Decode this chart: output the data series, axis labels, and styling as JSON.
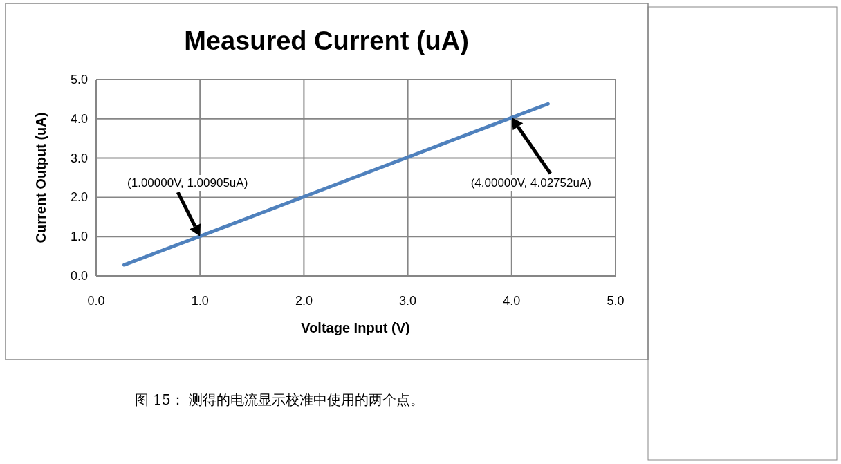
{
  "chart_data": {
    "type": "line",
    "title": "Measured Current (uA)",
    "xlabel": "Voltage Input (V)",
    "ylabel": "Current Output (uA)",
    "x": [
      0.27,
      1.0,
      4.0,
      4.35
    ],
    "series": [
      {
        "color": "#4f81bd",
        "values": [
          0.28,
          1.01,
          4.03,
          4.38
        ]
      }
    ],
    "xlim": [
      0,
      5
    ],
    "ylim": [
      0,
      5
    ],
    "xticks": [
      {
        "value": 0,
        "label": "0.0"
      },
      {
        "value": 1,
        "label": "1.0"
      },
      {
        "value": 2,
        "label": "2.0"
      },
      {
        "value": 3,
        "label": "3.0"
      },
      {
        "value": 4,
        "label": "4.0"
      },
      {
        "value": 5,
        "label": "5.0"
      }
    ],
    "yticks": [
      {
        "value": 0,
        "label": "0.0"
      },
      {
        "value": 1,
        "label": "1.0"
      },
      {
        "value": 2,
        "label": "2.0"
      },
      {
        "value": 3,
        "label": "3.0"
      },
      {
        "value": 4,
        "label": "4.0"
      },
      {
        "value": 5,
        "label": "5.0"
      }
    ],
    "grid": true,
    "annotations": [
      "(1.00000V, 1.00905uA)",
      "(4.00000V, 4.02752uA)",
      "图 15： 测得的电流显示校准中使用的两个点。"
    ]
  }
}
